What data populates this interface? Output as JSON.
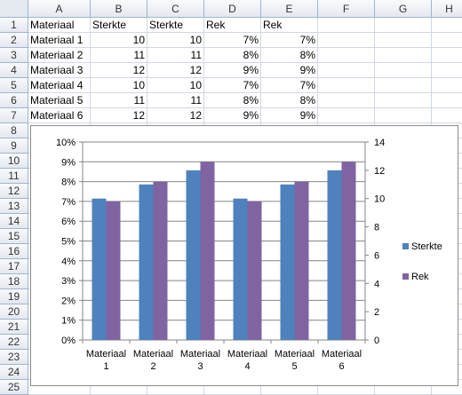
{
  "columns": [
    "A",
    "B",
    "C",
    "D",
    "E",
    "F",
    "G",
    "H"
  ],
  "rows": [
    "1",
    "2",
    "3",
    "4",
    "5",
    "6",
    "7",
    "8",
    "9",
    "10",
    "11",
    "12",
    "13",
    "14",
    "15",
    "16",
    "17",
    "18",
    "19",
    "20",
    "21",
    "22",
    "23",
    "24",
    "25"
  ],
  "table": {
    "header": [
      "Materiaal",
      "Sterkte",
      "Sterkte",
      "Rek",
      "Rek"
    ],
    "rows": [
      [
        "Materiaal 1",
        "10",
        "10",
        "7%",
        "7%"
      ],
      [
        "Materiaal 2",
        "11",
        "11",
        "8%",
        "8%"
      ],
      [
        "Materiaal 3",
        "12",
        "12",
        "9%",
        "9%"
      ],
      [
        "Materiaal 4",
        "10",
        "10",
        "7%",
        "7%"
      ],
      [
        "Materiaal 5",
        "11",
        "11",
        "8%",
        "8%"
      ],
      [
        "Materiaal 6",
        "12",
        "12",
        "9%",
        "9%"
      ]
    ]
  },
  "colors": {
    "sterkte": "#4f81bd",
    "rek": "#8064a2",
    "grid": "#868686"
  },
  "chart_data": {
    "type": "bar",
    "categories": [
      [
        "Materiaal",
        "1"
      ],
      [
        "Materiaal",
        "2"
      ],
      [
        "Materiaal",
        "3"
      ],
      [
        "Materiaal",
        "4"
      ],
      [
        "Materiaal",
        "5"
      ],
      [
        "Materiaal",
        "6"
      ]
    ],
    "series": [
      {
        "name": "Sterkte",
        "axis": "secondary",
        "values": [
          10,
          11,
          12,
          10,
          11,
          12
        ]
      },
      {
        "name": "Rek",
        "axis": "primary",
        "values": [
          0.07,
          0.08,
          0.09,
          0.07,
          0.08,
          0.09
        ]
      }
    ],
    "primary_axis": {
      "min": 0,
      "max": 0.1,
      "ticks": [
        "0%",
        "1%",
        "2%",
        "3%",
        "4%",
        "5%",
        "6%",
        "7%",
        "8%",
        "9%",
        "10%"
      ]
    },
    "secondary_axis": {
      "min": 0,
      "max": 14,
      "ticks": [
        "0",
        "2",
        "4",
        "6",
        "8",
        "10",
        "12",
        "14"
      ]
    },
    "legend": "right",
    "grid": true
  }
}
